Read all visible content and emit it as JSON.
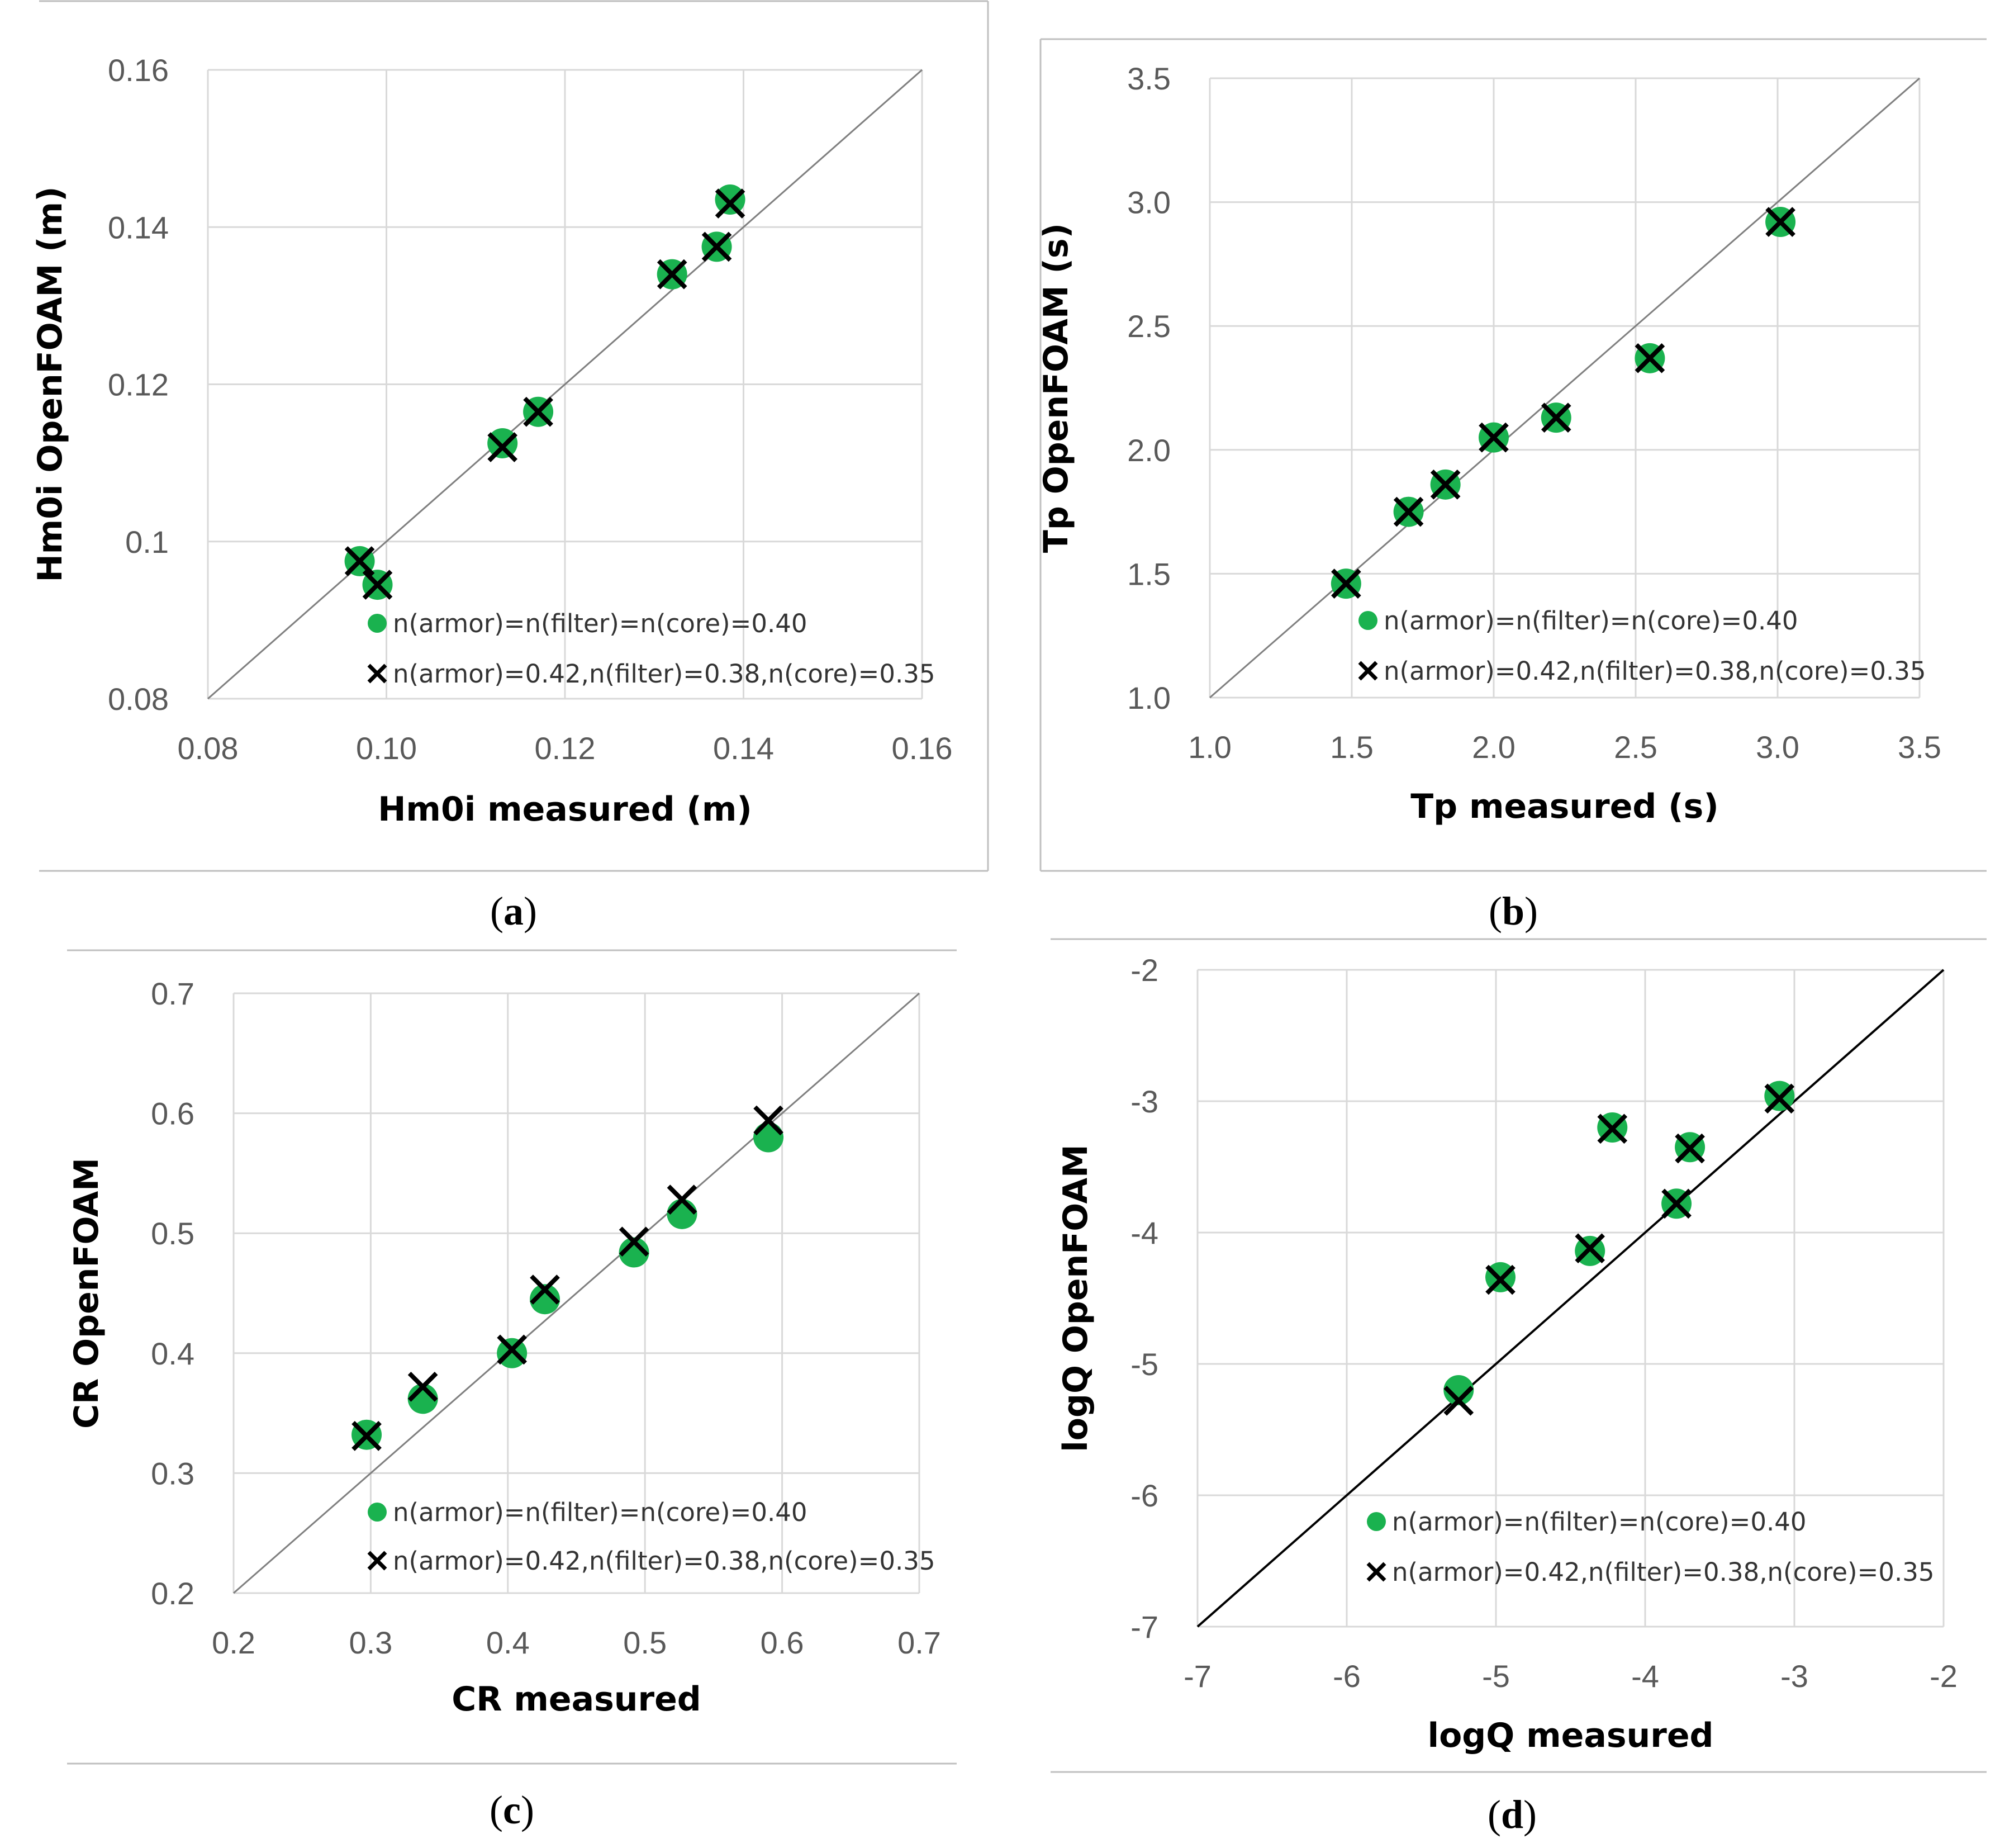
{
  "colors": {
    "series_circle": "#1ab24f",
    "series_cross": "#000000",
    "grid": "#d9d9d9",
    "frame": "#bfbfbf",
    "tick_text": "#595959"
  },
  "chart_data": [
    {
      "type": "scatter",
      "caption": "(a)",
      "caption_letter": "a",
      "xlabel": "Hm0i measured (m)",
      "ylabel": "Hm0i OpenFOAM (m)",
      "xlim": [
        0.08,
        0.16
      ],
      "ylim": [
        0.08,
        0.16
      ],
      "x_ticks": [
        "0.08",
        "0.10",
        "0.12",
        "0.14",
        "0.16"
      ],
      "y_ticks": [
        "0.08",
        "0.1",
        "0.12",
        "0.14",
        "0.16"
      ],
      "reference_line": "y = x",
      "legend": [
        "n(armor)=n(filter)=n(core)=0.40",
        "n(armor)=0.42,n(filter)=0.38,n(core)=0.35"
      ],
      "series": [
        {
          "name": "n(armor)=n(filter)=n(core)=0.40",
          "marker": "circle",
          "x": [
            0.097,
            0.099,
            0.113,
            0.117,
            0.132,
            0.137,
            0.1385
          ],
          "y": [
            0.0975,
            0.0945,
            0.1125,
            0.1165,
            0.134,
            0.1375,
            0.1435
          ]
        },
        {
          "name": "n(armor)=0.42,n(filter)=0.38,n(core)=0.35",
          "marker": "cross",
          "x": [
            0.097,
            0.099,
            0.113,
            0.117,
            0.132,
            0.137,
            0.1385
          ],
          "y": [
            0.0975,
            0.0945,
            0.112,
            0.1165,
            0.134,
            0.1375,
            0.143
          ]
        }
      ]
    },
    {
      "type": "scatter",
      "caption": "(b)",
      "caption_letter": "b",
      "xlabel": "Tp measured (s)",
      "ylabel": "Tp OpenFOAM (s)",
      "xlim": [
        1.0,
        3.5
      ],
      "ylim": [
        1.0,
        3.5
      ],
      "x_ticks": [
        "1.0",
        "1.5",
        "2.0",
        "2.5",
        "3.0",
        "3.5"
      ],
      "y_ticks": [
        "1.0",
        "1.5",
        "2.0",
        "2.5",
        "3.0",
        "3.5"
      ],
      "reference_line": "y = x",
      "legend": [
        "n(armor)=n(filter)=n(core)=0.40",
        "n(armor)=0.42,n(filter)=0.38,n(core)=0.35"
      ],
      "series": [
        {
          "name": "n(armor)=n(filter)=n(core)=0.40",
          "marker": "circle",
          "x": [
            1.48,
            1.7,
            1.83,
            2.0,
            2.22,
            2.55,
            3.01
          ],
          "y": [
            1.46,
            1.75,
            1.86,
            2.05,
            2.13,
            2.37,
            2.92
          ]
        },
        {
          "name": "n(armor)=0.42,n(filter)=0.38,n(core)=0.35",
          "marker": "cross",
          "x": [
            1.48,
            1.7,
            1.83,
            2.0,
            2.22,
            2.55,
            3.01
          ],
          "y": [
            1.46,
            1.75,
            1.86,
            2.05,
            2.13,
            2.37,
            2.92
          ]
        }
      ]
    },
    {
      "type": "scatter",
      "caption": "(c)",
      "caption_letter": "c",
      "xlabel": "CR measured",
      "ylabel": "CR OpenFOAM",
      "xlim": [
        0.2,
        0.7
      ],
      "ylim": [
        0.2,
        0.7
      ],
      "x_ticks": [
        "0.2",
        "0.3",
        "0.4",
        "0.5",
        "0.6",
        "0.7"
      ],
      "y_ticks": [
        "0.2",
        "0.3",
        "0.4",
        "0.5",
        "0.6",
        "0.7"
      ],
      "reference_line": "y = x",
      "legend": [
        "n(armor)=n(filter)=n(core)=0.40",
        "n(armor)=0.42,n(filter)=0.38,n(core)=0.35"
      ],
      "series": [
        {
          "name": "n(armor)=n(filter)=n(core)=0.40",
          "marker": "circle",
          "x": [
            0.297,
            0.338,
            0.403,
            0.427,
            0.492,
            0.527,
            0.59
          ],
          "y": [
            0.332,
            0.362,
            0.4,
            0.445,
            0.484,
            0.516,
            0.58
          ]
        },
        {
          "name": "n(armor)=0.42,n(filter)=0.38,n(core)=0.35",
          "marker": "cross",
          "x": [
            0.297,
            0.338,
            0.403,
            0.427,
            0.492,
            0.527,
            0.59
          ],
          "y": [
            0.331,
            0.372,
            0.403,
            0.453,
            0.493,
            0.528,
            0.594
          ]
        }
      ]
    },
    {
      "type": "scatter",
      "caption": "(d)",
      "caption_letter": "d",
      "xlabel": "logQ measured",
      "ylabel": "logQ OpenFOAM",
      "xlim": [
        -7,
        -2
      ],
      "ylim": [
        -7,
        -2
      ],
      "x_ticks": [
        "-7",
        "-6",
        "-5",
        "-4",
        "-3",
        "-2"
      ],
      "y_ticks": [
        "-7",
        "-6",
        "-5",
        "-4",
        "-3",
        "-2"
      ],
      "reference_line": "y = x",
      "legend": [
        "n(armor)=n(filter)=n(core)=0.40",
        "n(armor)=0.42,n(filter)=0.38,n(core)=0.35"
      ],
      "series": [
        {
          "name": "n(armor)=n(filter)=n(core)=0.40",
          "marker": "circle",
          "x": [
            -5.25,
            -4.97,
            -4.37,
            -4.22,
            -3.79,
            -3.7,
            -3.1
          ],
          "y": [
            -5.2,
            -4.34,
            -4.14,
            -3.2,
            -3.78,
            -3.35,
            -2.96
          ]
        },
        {
          "name": "n(armor)=0.42,n(filter)=0.38,n(core)=0.35",
          "marker": "cross",
          "x": [
            -5.25,
            -4.97,
            -4.37,
            -4.22,
            -3.79,
            -3.7,
            -3.1
          ],
          "y": [
            -5.28,
            -4.36,
            -4.12,
            -3.21,
            -3.78,
            -3.36,
            -2.98
          ]
        }
      ]
    }
  ]
}
